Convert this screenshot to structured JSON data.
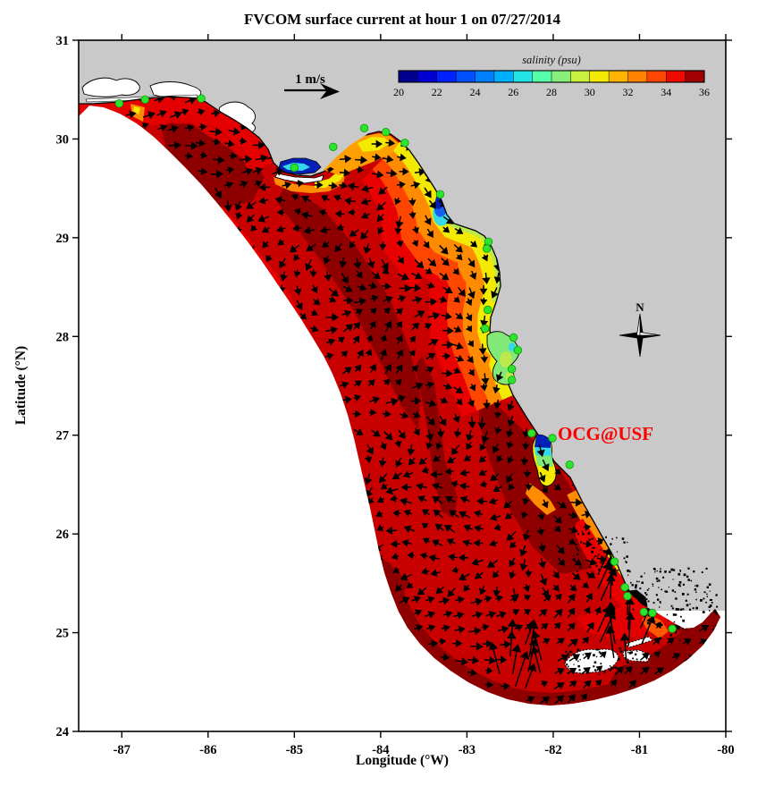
{
  "chart_data": {
    "type": "heatmap",
    "subtype": "geographic model map: surface salinity field with current vector arrows (West Florida Shelf)",
    "title": "FVCOM surface current at hour 1 on 07/27/2014",
    "xlabel": "Longitude (°W)",
    "ylabel": "Latitude (°N)",
    "xlim": [
      -87.5,
      -80
    ],
    "ylim": [
      24,
      31
    ],
    "xticks": [
      -87,
      -86,
      -85,
      -84,
      -83,
      -82,
      -81,
      -80
    ],
    "yticks": [
      31,
      30,
      29,
      28,
      27,
      26,
      25,
      24
    ],
    "grid": false,
    "colorbar": {
      "label": "salinity (psu)",
      "min": 20,
      "max": 36,
      "ticks": [
        20,
        22,
        24,
        26,
        28,
        30,
        32,
        34,
        36
      ],
      "bin_size_psu": 1,
      "bin_colors": [
        "#000090",
        "#0000D2",
        "#0021FF",
        "#0050FF",
        "#0080FF",
        "#00AFFF",
        "#22E4E4",
        "#55FFAA",
        "#86F07A",
        "#C8F03C",
        "#F2EA02",
        "#FFB400",
        "#FF8200",
        "#FF4600",
        "#EE0A00",
        "#A00000"
      ],
      "position": "top"
    },
    "reference_vector": {
      "label": "1 m/s",
      "speed_mps": 1
    },
    "compass": {
      "label": "N",
      "lon": -81.0,
      "lat": 28.05
    },
    "annotation": {
      "text": "OCG@USF",
      "color": "#FF0000",
      "lon": -81.95,
      "lat": 27.02
    },
    "salinity_regions": [
      {
        "name": "open shelf (most of model domain)",
        "salinity_psu": "34-36"
      },
      {
        "name": "Apalachicola Bay plume",
        "salinity_psu": "20-26"
      },
      {
        "name": "Big Bend / Suwannee coastal plume",
        "salinity_psu": "20-33"
      },
      {
        "name": "Tampa Bay interior",
        "salinity_psu": "26-30"
      },
      {
        "name": "Charlotte Harbor plume",
        "salinity_psu": "20-33"
      },
      {
        "name": "Southwest coast / Florida Bay band",
        "salinity_psu": "30-34"
      }
    ],
    "stations_lonlat": [
      [
        -87.03,
        30.36
      ],
      [
        -86.73,
        30.4
      ],
      [
        -86.08,
        30.41
      ],
      [
        -85.0,
        29.71
      ],
      [
        -84.55,
        29.92
      ],
      [
        -84.19,
        30.11
      ],
      [
        -83.94,
        30.07
      ],
      [
        -83.72,
        29.96
      ],
      [
        -83.31,
        29.44
      ],
      [
        -82.75,
        28.96
      ],
      [
        -82.77,
        28.89
      ],
      [
        -82.76,
        28.27
      ],
      [
        -82.79,
        28.08
      ],
      [
        -82.46,
        27.99
      ],
      [
        -82.41,
        27.86
      ],
      [
        -82.48,
        27.67
      ],
      [
        -82.48,
        27.56
      ],
      [
        -82.25,
        27.02
      ],
      [
        -82.01,
        26.97
      ],
      [
        -81.81,
        26.7
      ],
      [
        -81.29,
        25.72
      ],
      [
        -81.17,
        25.46
      ],
      [
        -81.14,
        25.37
      ],
      [
        -80.95,
        25.21
      ],
      [
        -80.85,
        25.2
      ],
      [
        -80.62,
        25.04
      ]
    ]
  },
  "colors": {
    "land": "#C9C9C9",
    "outside_domain": "#FFFFFF",
    "coastline": "#000000",
    "frame": "#000000",
    "arrow": "#000000",
    "station": "#2EE32E",
    "station_edge": "#0A9A0A",
    "shelf_base": "#C90000",
    "shelf_bright": "#E90000",
    "shelf_dark": "#8E0000",
    "plume_redorange": "#FF4600",
    "plume_orange": "#FF8C00",
    "plume_yellow": "#F2EA02",
    "plume_greenyellow": "#BCE94C",
    "plume_green": "#82E878",
    "plume_cyan": "#35D8E8",
    "plume_blue": "#1560F0",
    "plume_darkblue": "#0020B8"
  }
}
